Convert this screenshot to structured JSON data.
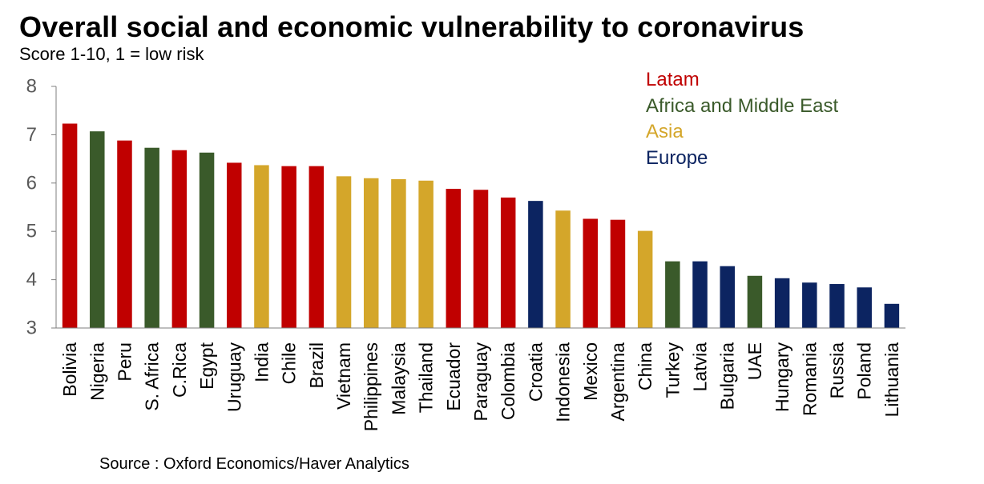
{
  "chart_data": {
    "type": "bar",
    "title": "Overall social and economic vulnerability to coronavirus",
    "subtitle": "Score 1-10, 1 = low risk",
    "source": "Source : Oxford Economics/Haver Analytics",
    "xlabel": "",
    "ylabel": "",
    "ylim": [
      3,
      8
    ],
    "yticks": [
      3,
      4,
      5,
      6,
      7,
      8
    ],
    "grid": false,
    "legend_position": "top-right",
    "categories": [
      "Bolivia",
      "Nigeria",
      "Peru",
      "S. Africa",
      "C.Rica",
      "Egypt",
      "Uruguay",
      "India",
      "Chile",
      "Brazil",
      "Vietnam",
      "Philippines",
      "Malaysia",
      "Thailand",
      "Ecuador",
      "Paraguay",
      "Colombia",
      "Croatia",
      "Indonesia",
      "Mexico",
      "Argentina",
      "China",
      "Turkey",
      "Latvia",
      "Bulgaria",
      "UAE",
      "Hungary",
      "Romania",
      "Russia",
      "Poland",
      "Lithuania"
    ],
    "values": [
      7.23,
      7.07,
      6.88,
      6.73,
      6.68,
      6.63,
      6.42,
      6.37,
      6.35,
      6.35,
      6.14,
      6.1,
      6.08,
      6.05,
      5.88,
      5.86,
      5.7,
      5.63,
      5.43,
      5.26,
      5.24,
      5.01,
      4.38,
      4.38,
      4.28,
      4.08,
      4.03,
      3.94,
      3.91,
      3.84,
      3.5
    ],
    "regions": [
      "Latam",
      "Africa and Middle East",
      "Latam",
      "Africa and Middle East",
      "Latam",
      "Africa and Middle East",
      "Latam",
      "Asia",
      "Latam",
      "Latam",
      "Asia",
      "Asia",
      "Asia",
      "Asia",
      "Latam",
      "Latam",
      "Latam",
      "Europe",
      "Asia",
      "Latam",
      "Latam",
      "Asia",
      "Africa and Middle East",
      "Europe",
      "Europe",
      "Africa and Middle East",
      "Europe",
      "Europe",
      "Europe",
      "Europe",
      "Europe"
    ],
    "legend": [
      {
        "name": "Latam",
        "color": "#c00000"
      },
      {
        "name": "Africa and Middle East",
        "color": "#3a5a2a"
      },
      {
        "name": "Asia",
        "color": "#d4a62a"
      },
      {
        "name": "Europe",
        "color": "#0c2461"
      }
    ]
  }
}
